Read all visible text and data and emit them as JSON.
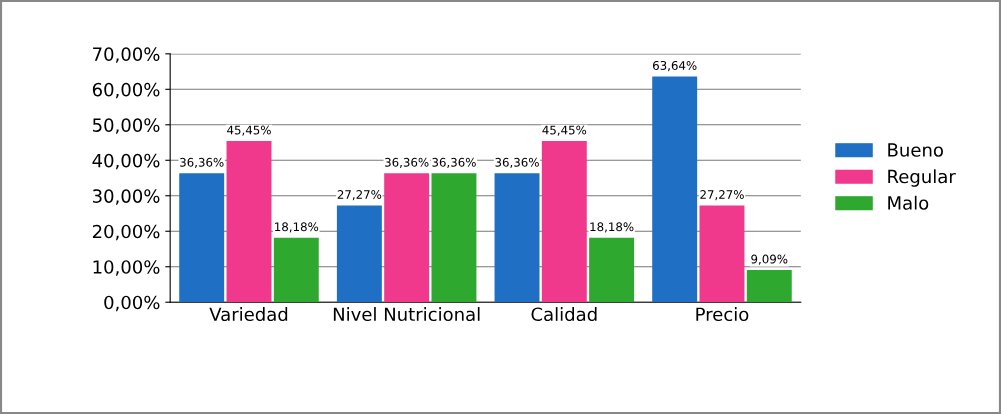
{
  "chart_data": {
    "type": "bar",
    "categories": [
      "Variedad",
      "Nivel Nutricional",
      "Calidad",
      "Precio"
    ],
    "series": [
      {
        "name": "Bueno",
        "color": "#1f6fc4",
        "values": [
          36.36,
          27.27,
          36.36,
          63.64
        ],
        "value_labels": [
          "36,36%",
          "27,27%",
          "36,36%",
          "63,64%"
        ]
      },
      {
        "name": "Regular",
        "color": "#f0388c",
        "values": [
          45.45,
          36.36,
          45.45,
          27.27
        ],
        "value_labels": [
          "45,45%",
          "36,36%",
          "45,45%",
          "27,27%"
        ]
      },
      {
        "name": "Malo",
        "color": "#2fa82f",
        "values": [
          18.18,
          36.36,
          18.18,
          9.09
        ],
        "value_labels": [
          "18,18%",
          "36,36%",
          "18,18%",
          "9,09%"
        ]
      }
    ],
    "ylim": [
      0,
      70
    ],
    "yticks": [
      {
        "value": 0,
        "label": "0,00%"
      },
      {
        "value": 10,
        "label": "10,00%"
      },
      {
        "value": 20,
        "label": "20,00%"
      },
      {
        "value": 30,
        "label": "30,00%"
      },
      {
        "value": 40,
        "label": "40,00%"
      },
      {
        "value": 50,
        "label": "50,00%"
      },
      {
        "value": 60,
        "label": "60,00%"
      },
      {
        "value": 70,
        "label": "70,00%"
      }
    ],
    "grid": "y",
    "legend": "right"
  }
}
